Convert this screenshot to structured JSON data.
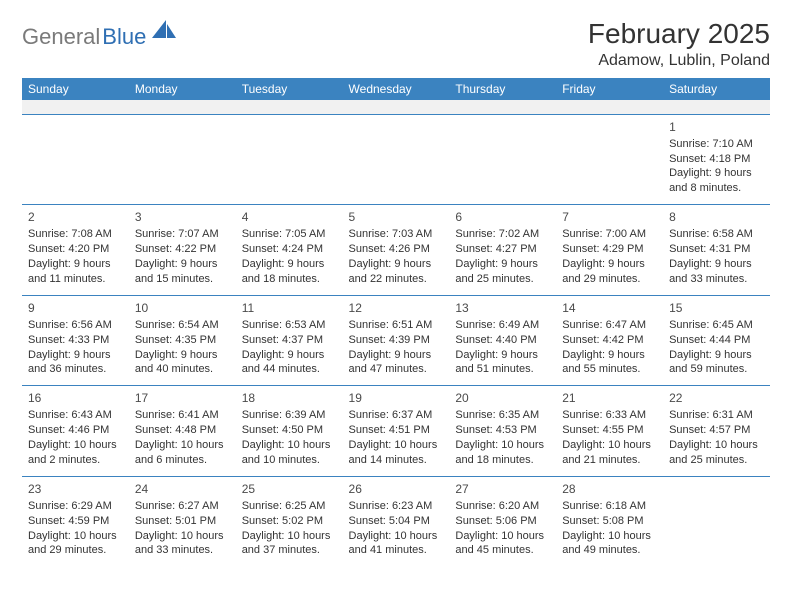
{
  "brand": {
    "gray": "General",
    "blue": "Blue"
  },
  "header": {
    "month_title": "February 2025",
    "location": "Adamow, Lublin, Poland"
  },
  "colors": {
    "header_bar": "#3b83c0",
    "header_text": "#ffffff",
    "body_text": "#333333",
    "blank_row_bg": "#f1f1f1",
    "rule": "#3b83c0"
  },
  "calendar": {
    "day_headers": [
      "Sunday",
      "Monday",
      "Tuesday",
      "Wednesday",
      "Thursday",
      "Friday",
      "Saturday"
    ],
    "weeks": [
      [
        null,
        null,
        null,
        null,
        null,
        null,
        {
          "n": "1",
          "sr": "Sunrise: 7:10 AM",
          "ss": "Sunset: 4:18 PM",
          "d1": "Daylight: 9 hours",
          "d2": "and 8 minutes."
        }
      ],
      [
        {
          "n": "2",
          "sr": "Sunrise: 7:08 AM",
          "ss": "Sunset: 4:20 PM",
          "d1": "Daylight: 9 hours",
          "d2": "and 11 minutes."
        },
        {
          "n": "3",
          "sr": "Sunrise: 7:07 AM",
          "ss": "Sunset: 4:22 PM",
          "d1": "Daylight: 9 hours",
          "d2": "and 15 minutes."
        },
        {
          "n": "4",
          "sr": "Sunrise: 7:05 AM",
          "ss": "Sunset: 4:24 PM",
          "d1": "Daylight: 9 hours",
          "d2": "and 18 minutes."
        },
        {
          "n": "5",
          "sr": "Sunrise: 7:03 AM",
          "ss": "Sunset: 4:26 PM",
          "d1": "Daylight: 9 hours",
          "d2": "and 22 minutes."
        },
        {
          "n": "6",
          "sr": "Sunrise: 7:02 AM",
          "ss": "Sunset: 4:27 PM",
          "d1": "Daylight: 9 hours",
          "d2": "and 25 minutes."
        },
        {
          "n": "7",
          "sr": "Sunrise: 7:00 AM",
          "ss": "Sunset: 4:29 PM",
          "d1": "Daylight: 9 hours",
          "d2": "and 29 minutes."
        },
        {
          "n": "8",
          "sr": "Sunrise: 6:58 AM",
          "ss": "Sunset: 4:31 PM",
          "d1": "Daylight: 9 hours",
          "d2": "and 33 minutes."
        }
      ],
      [
        {
          "n": "9",
          "sr": "Sunrise: 6:56 AM",
          "ss": "Sunset: 4:33 PM",
          "d1": "Daylight: 9 hours",
          "d2": "and 36 minutes."
        },
        {
          "n": "10",
          "sr": "Sunrise: 6:54 AM",
          "ss": "Sunset: 4:35 PM",
          "d1": "Daylight: 9 hours",
          "d2": "and 40 minutes."
        },
        {
          "n": "11",
          "sr": "Sunrise: 6:53 AM",
          "ss": "Sunset: 4:37 PM",
          "d1": "Daylight: 9 hours",
          "d2": "and 44 minutes."
        },
        {
          "n": "12",
          "sr": "Sunrise: 6:51 AM",
          "ss": "Sunset: 4:39 PM",
          "d1": "Daylight: 9 hours",
          "d2": "and 47 minutes."
        },
        {
          "n": "13",
          "sr": "Sunrise: 6:49 AM",
          "ss": "Sunset: 4:40 PM",
          "d1": "Daylight: 9 hours",
          "d2": "and 51 minutes."
        },
        {
          "n": "14",
          "sr": "Sunrise: 6:47 AM",
          "ss": "Sunset: 4:42 PM",
          "d1": "Daylight: 9 hours",
          "d2": "and 55 minutes."
        },
        {
          "n": "15",
          "sr": "Sunrise: 6:45 AM",
          "ss": "Sunset: 4:44 PM",
          "d1": "Daylight: 9 hours",
          "d2": "and 59 minutes."
        }
      ],
      [
        {
          "n": "16",
          "sr": "Sunrise: 6:43 AM",
          "ss": "Sunset: 4:46 PM",
          "d1": "Daylight: 10 hours",
          "d2": "and 2 minutes."
        },
        {
          "n": "17",
          "sr": "Sunrise: 6:41 AM",
          "ss": "Sunset: 4:48 PM",
          "d1": "Daylight: 10 hours",
          "d2": "and 6 minutes."
        },
        {
          "n": "18",
          "sr": "Sunrise: 6:39 AM",
          "ss": "Sunset: 4:50 PM",
          "d1": "Daylight: 10 hours",
          "d2": "and 10 minutes."
        },
        {
          "n": "19",
          "sr": "Sunrise: 6:37 AM",
          "ss": "Sunset: 4:51 PM",
          "d1": "Daylight: 10 hours",
          "d2": "and 14 minutes."
        },
        {
          "n": "20",
          "sr": "Sunrise: 6:35 AM",
          "ss": "Sunset: 4:53 PM",
          "d1": "Daylight: 10 hours",
          "d2": "and 18 minutes."
        },
        {
          "n": "21",
          "sr": "Sunrise: 6:33 AM",
          "ss": "Sunset: 4:55 PM",
          "d1": "Daylight: 10 hours",
          "d2": "and 21 minutes."
        },
        {
          "n": "22",
          "sr": "Sunrise: 6:31 AM",
          "ss": "Sunset: 4:57 PM",
          "d1": "Daylight: 10 hours",
          "d2": "and 25 minutes."
        }
      ],
      [
        {
          "n": "23",
          "sr": "Sunrise: 6:29 AM",
          "ss": "Sunset: 4:59 PM",
          "d1": "Daylight: 10 hours",
          "d2": "and 29 minutes."
        },
        {
          "n": "24",
          "sr": "Sunrise: 6:27 AM",
          "ss": "Sunset: 5:01 PM",
          "d1": "Daylight: 10 hours",
          "d2": "and 33 minutes."
        },
        {
          "n": "25",
          "sr": "Sunrise: 6:25 AM",
          "ss": "Sunset: 5:02 PM",
          "d1": "Daylight: 10 hours",
          "d2": "and 37 minutes."
        },
        {
          "n": "26",
          "sr": "Sunrise: 6:23 AM",
          "ss": "Sunset: 5:04 PM",
          "d1": "Daylight: 10 hours",
          "d2": "and 41 minutes."
        },
        {
          "n": "27",
          "sr": "Sunrise: 6:20 AM",
          "ss": "Sunset: 5:06 PM",
          "d1": "Daylight: 10 hours",
          "d2": "and 45 minutes."
        },
        {
          "n": "28",
          "sr": "Sunrise: 6:18 AM",
          "ss": "Sunset: 5:08 PM",
          "d1": "Daylight: 10 hours",
          "d2": "and 49 minutes."
        },
        null
      ]
    ]
  }
}
